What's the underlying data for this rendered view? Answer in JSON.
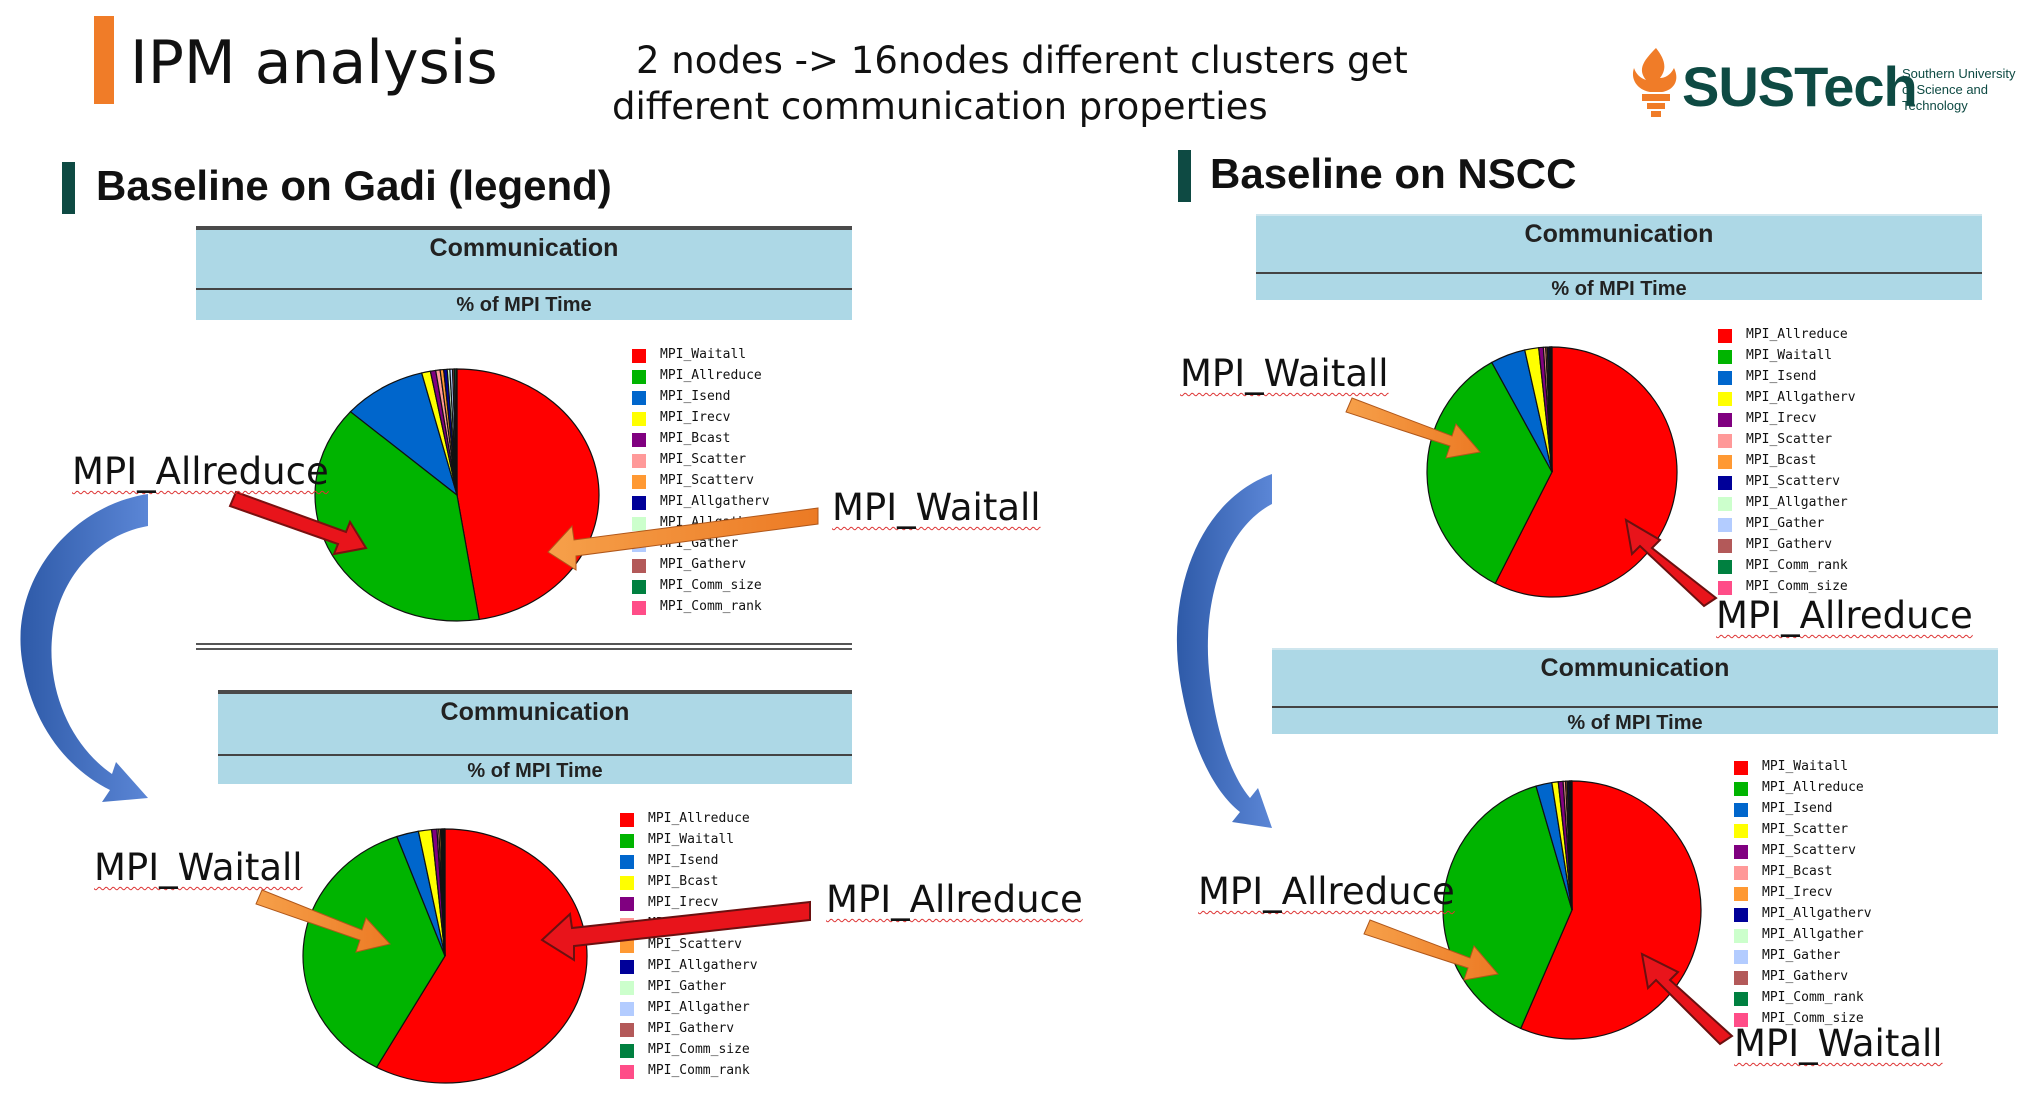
{
  "slide": {
    "title": "IPM analysis",
    "subtitle_line1": "2 nodes -> 16nodes different clusters get",
    "subtitle_line2": "different communication properties",
    "logo_text": "SUSTech",
    "logo_subtext": "Southern University\nof Science and\nTechnology"
  },
  "sections": {
    "gadi": "Baseline on Gadi  (legend)",
    "nscc": "Baseline on NSCC"
  },
  "panel_header": {
    "title": "Communication",
    "subtitle": "% of MPI Time"
  },
  "callouts": {
    "gadi_top_allreduce": "MPI_Allreduce",
    "gadi_top_waitall": "MPI_Waitall",
    "gadi_bottom_waitall": "MPI_Waitall",
    "gadi_bottom_allreduce": "MPI_Allreduce",
    "nscc_top_waitall": "MPI_Waitall",
    "nscc_top_allreduce": "MPI_Allreduce",
    "nscc_bottom_allreduce": "MPI_Allreduce",
    "nscc_bottom_waitall": "MPI_Waitall"
  },
  "colors": {
    "accent": "#f07c28",
    "brand": "#0e4a43",
    "header_bg": "#add8e6",
    "arrow_red": "#e8141b",
    "arrow_orange": "#f08a30",
    "arrow_blue": "#3f6cc6"
  },
  "chart_data": [
    {
      "id": "gadi-top",
      "type": "pie",
      "title": "Communication",
      "subtitle": "% of MPI Time",
      "series": [
        {
          "name": "MPI_Waitall",
          "value": 47.5,
          "color": "#ff0000"
        },
        {
          "name": "MPI_Allreduce",
          "value": 39.0,
          "color": "#00b400"
        },
        {
          "name": "MPI_Isend",
          "value": 9.5,
          "color": "#0066cc"
        },
        {
          "name": "MPI_Irecv",
          "value": 1.0,
          "color": "#ffff00"
        },
        {
          "name": "MPI_Bcast",
          "value": 0.6,
          "color": "#800080"
        },
        {
          "name": "MPI_Scatter",
          "value": 0.5,
          "color": "#ff9999"
        },
        {
          "name": "MPI_Scatterv",
          "value": 0.4,
          "color": "#ff9933"
        },
        {
          "name": "MPI_Allgatherv",
          "value": 0.4,
          "color": "#000099"
        },
        {
          "name": "MPI_Allgather",
          "value": 0.3,
          "color": "#ccffcc"
        },
        {
          "name": "MPI_Gather",
          "value": 0.3,
          "color": "#b3ccff"
        },
        {
          "name": "MPI_Gatherv",
          "value": 0.2,
          "color": "#b35959"
        },
        {
          "name": "MPI_Comm_size",
          "value": 0.2,
          "color": "#008040"
        },
        {
          "name": "MPI_Comm_rank",
          "value": 0.1,
          "color": "#ff4d88"
        }
      ]
    },
    {
      "id": "gadi-bottom",
      "type": "pie",
      "title": "Communication",
      "subtitle": "% of MPI Time",
      "series": [
        {
          "name": "MPI_Allreduce",
          "value": 58.0,
          "color": "#ff0000"
        },
        {
          "name": "MPI_Waitall",
          "value": 36.5,
          "color": "#00b400"
        },
        {
          "name": "MPI_Isend",
          "value": 2.5,
          "color": "#0066cc"
        },
        {
          "name": "MPI_Bcast",
          "value": 1.5,
          "color": "#ffff00"
        },
        {
          "name": "MPI_Irecv",
          "value": 0.6,
          "color": "#800080"
        },
        {
          "name": "MPI_Scatter",
          "value": 0.2,
          "color": "#ff9999"
        },
        {
          "name": "MPI_Scatterv",
          "value": 0.2,
          "color": "#ff9933"
        },
        {
          "name": "MPI_Allgatherv",
          "value": 0.1,
          "color": "#000099"
        },
        {
          "name": "MPI_Gather",
          "value": 0.1,
          "color": "#ccffcc"
        },
        {
          "name": "MPI_Allgather",
          "value": 0.1,
          "color": "#b3ccff"
        },
        {
          "name": "MPI_Gatherv",
          "value": 0.1,
          "color": "#b35959"
        },
        {
          "name": "MPI_Comm_size",
          "value": 0.05,
          "color": "#008040"
        },
        {
          "name": "MPI_Comm_rank",
          "value": 0.05,
          "color": "#ff4d88"
        }
      ]
    },
    {
      "id": "nscc-top",
      "type": "pie",
      "title": "Communication",
      "subtitle": "% of MPI Time",
      "series": [
        {
          "name": "MPI_Allreduce",
          "value": 57.5,
          "color": "#ff0000"
        },
        {
          "name": "MPI_Waitall",
          "value": 34.5,
          "color": "#00b400"
        },
        {
          "name": "MPI_Isend",
          "value": 4.5,
          "color": "#0066cc"
        },
        {
          "name": "MPI_Allgatherv",
          "value": 1.8,
          "color": "#ffff00"
        },
        {
          "name": "MPI_Irecv",
          "value": 0.6,
          "color": "#800080"
        },
        {
          "name": "MPI_Scatter",
          "value": 0.3,
          "color": "#ff9999"
        },
        {
          "name": "MPI_Bcast",
          "value": 0.2,
          "color": "#ff9933"
        },
        {
          "name": "MPI_Scatterv",
          "value": 0.2,
          "color": "#000099"
        },
        {
          "name": "MPI_Allgather",
          "value": 0.1,
          "color": "#ccffcc"
        },
        {
          "name": "MPI_Gather",
          "value": 0.1,
          "color": "#b3ccff"
        },
        {
          "name": "MPI_Gatherv",
          "value": 0.1,
          "color": "#b35959"
        },
        {
          "name": "MPI_Comm_rank",
          "value": 0.05,
          "color": "#008040"
        },
        {
          "name": "MPI_Comm_size",
          "value": 0.05,
          "color": "#ff4d88"
        }
      ]
    },
    {
      "id": "nscc-bottom",
      "type": "pie",
      "title": "Communication",
      "subtitle": "% of MPI Time",
      "series": [
        {
          "name": "MPI_Waitall",
          "value": 56.5,
          "color": "#ff0000"
        },
        {
          "name": "MPI_Allreduce",
          "value": 39.0,
          "color": "#00b400"
        },
        {
          "name": "MPI_Isend",
          "value": 2.0,
          "color": "#0066cc"
        },
        {
          "name": "MPI_Scatter",
          "value": 0.8,
          "color": "#ffff00"
        },
        {
          "name": "MPI_Scatterv",
          "value": 0.6,
          "color": "#800080"
        },
        {
          "name": "MPI_Bcast",
          "value": 0.3,
          "color": "#ff9999"
        },
        {
          "name": "MPI_Irecv",
          "value": 0.2,
          "color": "#ff9933"
        },
        {
          "name": "MPI_Allgatherv",
          "value": 0.2,
          "color": "#000099"
        },
        {
          "name": "MPI_Allgather",
          "value": 0.1,
          "color": "#ccffcc"
        },
        {
          "name": "MPI_Gather",
          "value": 0.1,
          "color": "#b3ccff"
        },
        {
          "name": "MPI_Gatherv",
          "value": 0.1,
          "color": "#b35959"
        },
        {
          "name": "MPI_Comm_rank",
          "value": 0.05,
          "color": "#008040"
        },
        {
          "name": "MPI_Comm_size",
          "value": 0.05,
          "color": "#ff4d88"
        }
      ]
    }
  ]
}
